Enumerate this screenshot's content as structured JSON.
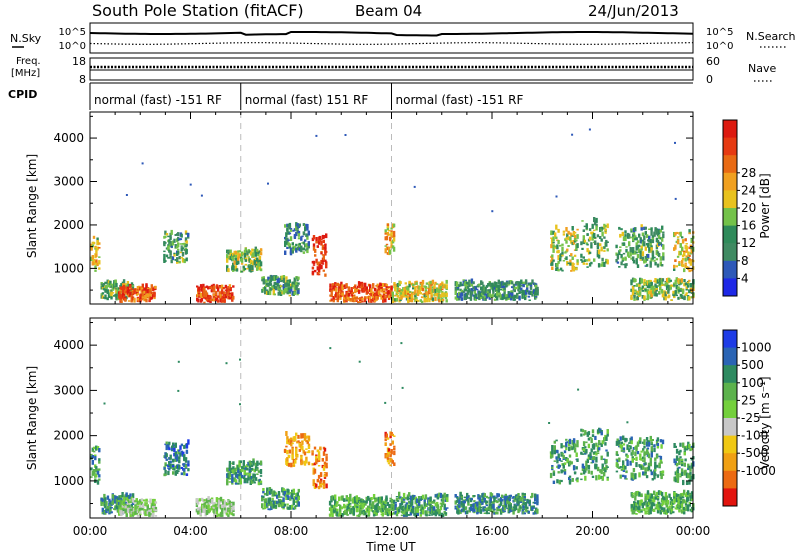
{
  "header": {
    "title": "South Pole Station (fitACF)",
    "beam": "Beam 04",
    "date": "24/Jun/2013"
  },
  "side_labels": {
    "nsky": "N.Sky",
    "freq": "Freq.",
    "freq_unit": "[MHz]",
    "cpid": "CPID",
    "nsearch": "N.Search",
    "nave": "Nave"
  },
  "small_ticks": {
    "noise_left": [
      "10^5",
      "10^0"
    ],
    "noise_right": [
      "10^5",
      "10^0"
    ],
    "freq_left": [
      "18",
      "8"
    ],
    "freq_right": [
      "60",
      "0"
    ]
  },
  "cpid_segments": [
    {
      "label": "normal (fast) -151 RF",
      "start_h": 0,
      "end_h": 6
    },
    {
      "label": "normal (fast) 151 RF",
      "start_h": 6,
      "end_h": 12
    },
    {
      "label": "normal (fast) -151 RF",
      "start_h": 12,
      "end_h": 24
    }
  ],
  "chart_data": [
    {
      "type": "heatmap",
      "quantity": "power",
      "ylabel": "Slant Range [km]",
      "xlim_hours": [
        0,
        24
      ],
      "ylim": [
        180,
        4600
      ],
      "yticks": [
        1000,
        2000,
        3000,
        4000
      ],
      "colorbar": {
        "label": "Power [dB]",
        "ticks": [
          "4",
          "8",
          "12",
          "16",
          "20",
          "24",
          "28"
        ],
        "colors": [
          "#1e28e6",
          "#2d58b8",
          "#3f8a62",
          "#2f8a5a",
          "#74c24a",
          "#e8c21e",
          "#f0a020",
          "#e86a14",
          "#e63a12",
          "#dd1a10"
        ]
      },
      "echo_regions": [
        {
          "t0": 0.0,
          "t1": 0.35,
          "r0": 900,
          "r1": 1700,
          "level": 0.55
        },
        {
          "t0": 0.4,
          "t1": 1.7,
          "r0": 250,
          "r1": 650,
          "level": 0.4
        },
        {
          "t0": 1.1,
          "t1": 2.6,
          "r0": 200,
          "r1": 560,
          "level": 0.8
        },
        {
          "t0": 2.9,
          "t1": 3.9,
          "r0": 1100,
          "r1": 1800,
          "level": 0.35
        },
        {
          "t0": 4.2,
          "t1": 5.7,
          "r0": 200,
          "r1": 560,
          "level": 0.85
        },
        {
          "t0": 5.4,
          "t1": 6.8,
          "r0": 900,
          "r1": 1400,
          "level": 0.45
        },
        {
          "t0": 6.8,
          "t1": 8.3,
          "r0": 350,
          "r1": 750,
          "level": 0.35
        },
        {
          "t0": 7.7,
          "t1": 8.7,
          "r0": 1300,
          "r1": 2000,
          "level": 0.3
        },
        {
          "t0": 8.8,
          "t1": 9.4,
          "r0": 800,
          "r1": 1700,
          "level": 0.9
        },
        {
          "t0": 9.5,
          "t1": 12.0,
          "r0": 200,
          "r1": 600,
          "level": 0.8
        },
        {
          "t0": 12.0,
          "t1": 14.2,
          "r0": 200,
          "r1": 650,
          "level": 0.55
        },
        {
          "t0": 11.7,
          "t1": 12.1,
          "r0": 1300,
          "r1": 2000,
          "level": 0.6
        },
        {
          "t0": 14.5,
          "t1": 17.8,
          "r0": 250,
          "r1": 650,
          "level": 0.3
        },
        {
          "t0": 18.3,
          "t1": 19.4,
          "r0": 900,
          "r1": 1900,
          "level": 0.5
        },
        {
          "t0": 19.5,
          "t1": 20.6,
          "r0": 1000,
          "r1": 2100,
          "level": 0.4
        },
        {
          "t0": 20.9,
          "t1": 22.8,
          "r0": 1000,
          "r1": 1900,
          "level": 0.35
        },
        {
          "t0": 21.5,
          "t1": 24.0,
          "r0": 250,
          "r1": 700,
          "level": 0.45
        },
        {
          "t0": 23.2,
          "t1": 24.0,
          "r0": 900,
          "r1": 1800,
          "level": 0.55
        }
      ]
    },
    {
      "type": "heatmap",
      "quantity": "velocity",
      "ylabel": "Slant Range [km]",
      "xlabel": "Time UT",
      "xlim_hours": [
        0,
        24
      ],
      "ylim": [
        180,
        4600
      ],
      "xticks": [
        "00:00",
        "04:00",
        "08:00",
        "12:00",
        "16:00",
        "20:00",
        "00:00"
      ],
      "yticks": [
        1000,
        2000,
        3000,
        4000
      ],
      "colorbar": {
        "label": "Velocity [m s⁻¹]",
        "ticks": [
          "1000",
          "500",
          "100",
          "25",
          "-25",
          "-100",
          "-500",
          "-1000"
        ],
        "colors": [
          "#1e3ce6",
          "#2a64b4",
          "#2e8a60",
          "#5cb24c",
          "#74d03c",
          "#c8c8c8",
          "#f0c814",
          "#f0a014",
          "#ec6a12",
          "#e2140e"
        ]
      },
      "echo_regions": [
        {
          "t0": 0.0,
          "t1": 0.35,
          "r0": 900,
          "r1": 1700,
          "level": 0.3
        },
        {
          "t0": 0.4,
          "t1": 1.7,
          "r0": 250,
          "r1": 650,
          "level": 0.25
        },
        {
          "t0": 1.1,
          "t1": 2.6,
          "r0": 200,
          "r1": 560,
          "level": 0.45
        },
        {
          "t0": 2.9,
          "t1": 3.9,
          "r0": 1100,
          "r1": 1800,
          "level": 0.2
        },
        {
          "t0": 4.2,
          "t1": 5.7,
          "r0": 200,
          "r1": 560,
          "level": 0.45
        },
        {
          "t0": 5.4,
          "t1": 6.8,
          "r0": 900,
          "r1": 1400,
          "level": 0.3
        },
        {
          "t0": 6.8,
          "t1": 8.3,
          "r0": 350,
          "r1": 750,
          "level": 0.3
        },
        {
          "t0": 7.7,
          "t1": 8.7,
          "r0": 1300,
          "r1": 2000,
          "level": 0.75
        },
        {
          "t0": 8.8,
          "t1": 9.4,
          "r0": 800,
          "r1": 1700,
          "level": 0.8
        },
        {
          "t0": 9.5,
          "t1": 12.0,
          "r0": 200,
          "r1": 600,
          "level": 0.35
        },
        {
          "t0": 12.0,
          "t1": 14.2,
          "r0": 200,
          "r1": 650,
          "level": 0.3
        },
        {
          "t0": 11.7,
          "t1": 12.1,
          "r0": 1300,
          "r1": 2000,
          "level": 0.8
        },
        {
          "t0": 14.5,
          "t1": 17.8,
          "r0": 250,
          "r1": 650,
          "level": 0.25
        },
        {
          "t0": 18.3,
          "t1": 19.4,
          "r0": 900,
          "r1": 1900,
          "level": 0.3
        },
        {
          "t0": 19.5,
          "t1": 20.6,
          "r0": 1000,
          "r1": 2100,
          "level": 0.3
        },
        {
          "t0": 20.9,
          "t1": 22.8,
          "r0": 1000,
          "r1": 1900,
          "level": 0.3
        },
        {
          "t0": 21.5,
          "t1": 24.0,
          "r0": 250,
          "r1": 700,
          "level": 0.35
        },
        {
          "t0": 23.2,
          "t1": 24.0,
          "r0": 900,
          "r1": 1800,
          "level": 0.3
        }
      ]
    }
  ]
}
